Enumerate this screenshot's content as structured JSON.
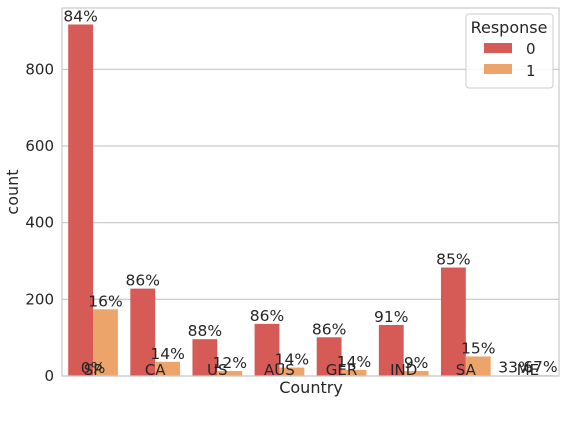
{
  "chart_data": {
    "type": "bar",
    "title": "",
    "xlabel": "Country",
    "ylabel": "count",
    "categories": [
      "SP",
      "CA",
      "US",
      "AUS",
      "GER",
      "IND",
      "SA",
      "ME"
    ],
    "series": [
      {
        "name": "0",
        "color": "#d65a55",
        "values": [
          917,
          228,
          96,
          136,
          101,
          133,
          283,
          1
        ],
        "labels": [
          "84%",
          "86%",
          "88%",
          "86%",
          "86%",
          "91%",
          "85%",
          "33%"
        ]
      },
      {
        "name": "1",
        "color": "#eda46b",
        "values": [
          174,
          37,
          13,
          22,
          16,
          13,
          51,
          2
        ],
        "labels": [
          "16%",
          "14%",
          "12%",
          "14%",
          "14%",
          "9%",
          "15%",
          "67%"
        ]
      }
    ],
    "extra_labels": [
      {
        "category": "SP",
        "text": "0%"
      }
    ],
    "ylim": [
      0,
      960
    ],
    "yticks": [
      0,
      200,
      400,
      600,
      800
    ],
    "grid": "y",
    "legend": {
      "title": "Response",
      "placement": "top-right"
    }
  }
}
